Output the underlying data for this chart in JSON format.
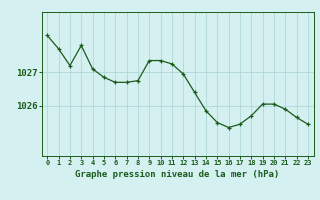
{
  "hours": [
    0,
    1,
    2,
    3,
    4,
    5,
    6,
    7,
    8,
    9,
    10,
    11,
    12,
    13,
    14,
    15,
    16,
    17,
    18,
    19,
    20,
    21,
    22,
    23
  ],
  "pressure": [
    1028.1,
    1027.7,
    1027.2,
    1027.8,
    1027.1,
    1026.85,
    1026.7,
    1026.7,
    1026.75,
    1027.35,
    1027.35,
    1027.25,
    1026.95,
    1026.4,
    1025.85,
    1025.5,
    1025.35,
    1025.45,
    1025.7,
    1026.05,
    1026.05,
    1025.9,
    1025.65,
    1025.45
  ],
  "line_color": "#1a5c1a",
  "marker": "+",
  "bg_color": "#d4f0f0",
  "grid_color": "#b0d8d8",
  "axis_color": "#1a5c1a",
  "title": "Graphe pression niveau de la mer (hPa)",
  "yticks": [
    1026,
    1027
  ],
  "ylim": [
    1024.5,
    1028.8
  ],
  "xlim": [
    -0.5,
    23.5
  ]
}
